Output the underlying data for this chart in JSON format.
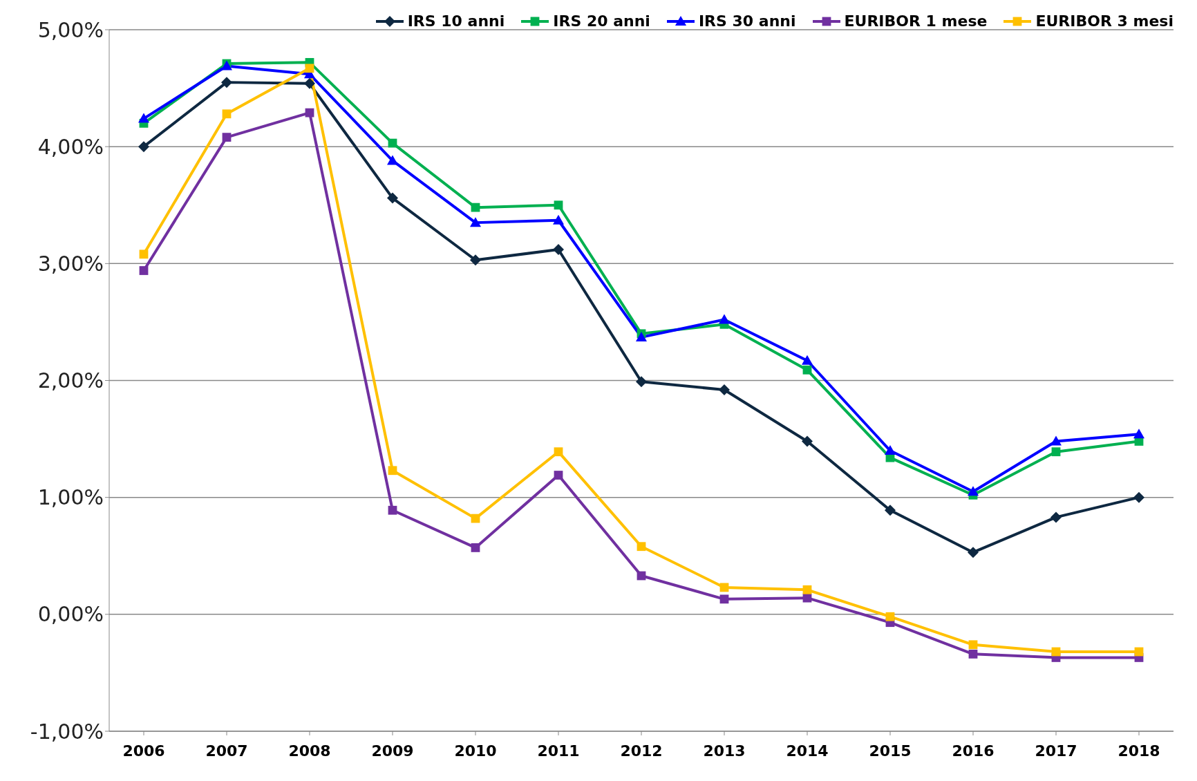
{
  "chart_data": {
    "type": "line",
    "categories": [
      "2006",
      "2007",
      "2008",
      "2009",
      "2010",
      "2011",
      "2012",
      "2013",
      "2014",
      "2015",
      "2016",
      "2017",
      "2018"
    ],
    "series": [
      {
        "name": "IRS 10 anni",
        "color": "#0e2841",
        "marker": "diamond",
        "values": [
          4.0,
          4.55,
          4.54,
          3.56,
          3.03,
          3.12,
          1.99,
          1.92,
          1.48,
          0.89,
          0.53,
          0.83,
          1.0
        ]
      },
      {
        "name": "IRS 20 anni",
        "color": "#00b050",
        "marker": "square",
        "values": [
          4.2,
          4.71,
          4.72,
          4.03,
          3.48,
          3.5,
          2.4,
          2.48,
          2.09,
          1.34,
          1.02,
          1.39,
          1.48
        ]
      },
      {
        "name": "IRS 30 anni",
        "color": "#0000ff",
        "marker": "triangle",
        "values": [
          4.24,
          4.69,
          4.62,
          3.88,
          3.35,
          3.37,
          2.37,
          2.52,
          2.17,
          1.4,
          1.05,
          1.48,
          1.54
        ]
      },
      {
        "name": "EURIBOR 1 mese",
        "color": "#7030a0",
        "marker": "square",
        "values": [
          2.94,
          4.08,
          4.29,
          0.89,
          0.57,
          1.19,
          0.33,
          0.13,
          0.14,
          -0.07,
          -0.34,
          -0.37,
          -0.37
        ]
      },
      {
        "name": "EURIBOR 3 mesi",
        "color": "#ffc000",
        "marker": "square",
        "values": [
          3.08,
          4.28,
          4.67,
          1.23,
          0.82,
          1.39,
          0.58,
          0.23,
          0.21,
          -0.02,
          -0.26,
          -0.32,
          -0.32
        ]
      }
    ],
    "ylim": [
      -1,
      5
    ],
    "yticks": [
      {
        "value": -1,
        "label": "-1,00%"
      },
      {
        "value": 0,
        "label": "0,00%"
      },
      {
        "value": 1,
        "label": "1,00%"
      },
      {
        "value": 2,
        "label": "2,00%"
      },
      {
        "value": 3,
        "label": "3,00%"
      },
      {
        "value": 4,
        "label": "4,00%"
      },
      {
        "value": 5,
        "label": "5,00%"
      }
    ],
    "grid": "y",
    "legend": "top right",
    "line_style": "solid"
  }
}
